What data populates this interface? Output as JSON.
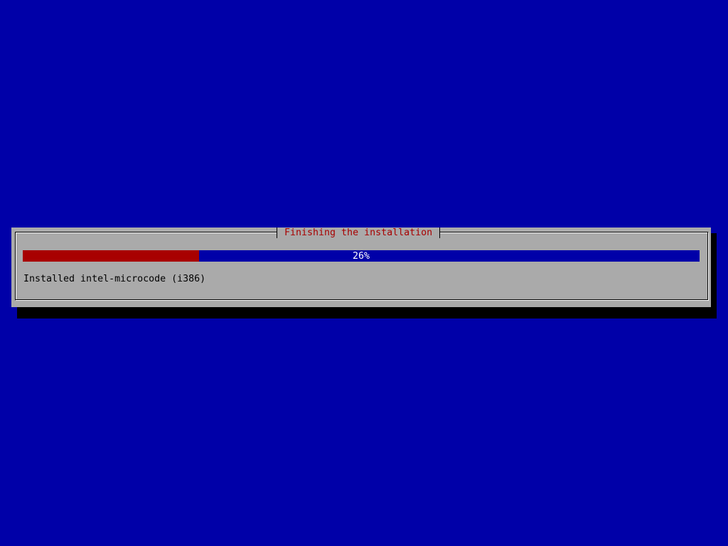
{
  "dialog": {
    "title": "Finishing the installation",
    "progress_percent": 26,
    "progress_label": "26%",
    "status": "Installed intel-microcode (i386)"
  },
  "colors": {
    "background": "#0000a8",
    "dialog": "#aaaaaa",
    "progress_fill": "#a80000",
    "progress_track": "#0000a8",
    "title_text": "#a80000"
  }
}
